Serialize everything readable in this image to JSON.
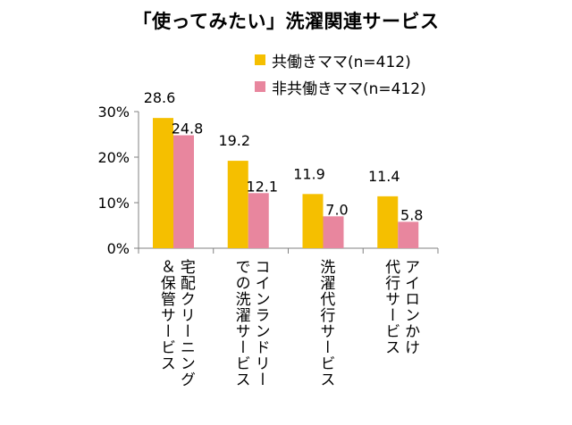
{
  "chart_data": {
    "type": "bar",
    "title": "「使ってみたい」洗濯関連サービス",
    "categories": [
      [
        "宅配クリーニング",
        "＆保管サービス"
      ],
      [
        "コインランドリー",
        "での洗濯サービス"
      ],
      [
        "洗濯代行サービス"
      ],
      [
        "アイロンかけ",
        "代行サービス"
      ]
    ],
    "series": [
      {
        "name": "共働きママ(n=412)",
        "color": "#f5bf00",
        "values": [
          28.6,
          19.2,
          11.9,
          11.4
        ],
        "labels": [
          "28.6",
          "19.2",
          "11.9",
          "11.4"
        ]
      },
      {
        "name": "非共働きママ(n=412)",
        "color": "#e8869e",
        "values": [
          24.8,
          12.1,
          7.0,
          5.8
        ],
        "labels": [
          "24.8",
          "12.1",
          "7.0",
          "5.8"
        ]
      }
    ],
    "ylim": [
      0,
      30
    ],
    "yticks": [
      0,
      10,
      20,
      30
    ],
    "ytick_labels": [
      "0%",
      "10%",
      "20%",
      "30%"
    ],
    "grid": false,
    "legend_position": "top-right"
  }
}
